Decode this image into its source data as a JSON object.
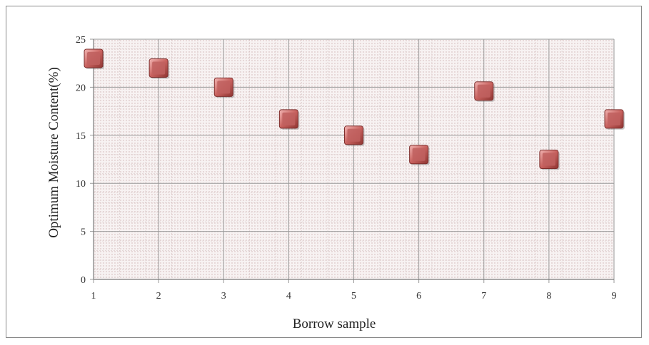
{
  "chart_data": {
    "type": "scatter",
    "title": "",
    "xlabel": "Borrow sample",
    "ylabel": "Optimum Moisture Content(%)",
    "xlim": [
      1,
      9
    ],
    "ylim": [
      0,
      25
    ],
    "xticks": [
      1,
      2,
      3,
      4,
      5,
      6,
      7,
      8,
      9
    ],
    "yticks": [
      0,
      5,
      10,
      15,
      20,
      25
    ],
    "grid": true,
    "legend": "none",
    "marker": "square",
    "marker_color": "#c0605f",
    "series": [
      {
        "x": [
          1,
          2,
          3,
          4,
          5,
          6,
          7,
          8,
          9
        ],
        "y": [
          23.0,
          22.0,
          20.0,
          16.7,
          15.0,
          13.0,
          19.6,
          12.5,
          16.7
        ]
      }
    ]
  }
}
